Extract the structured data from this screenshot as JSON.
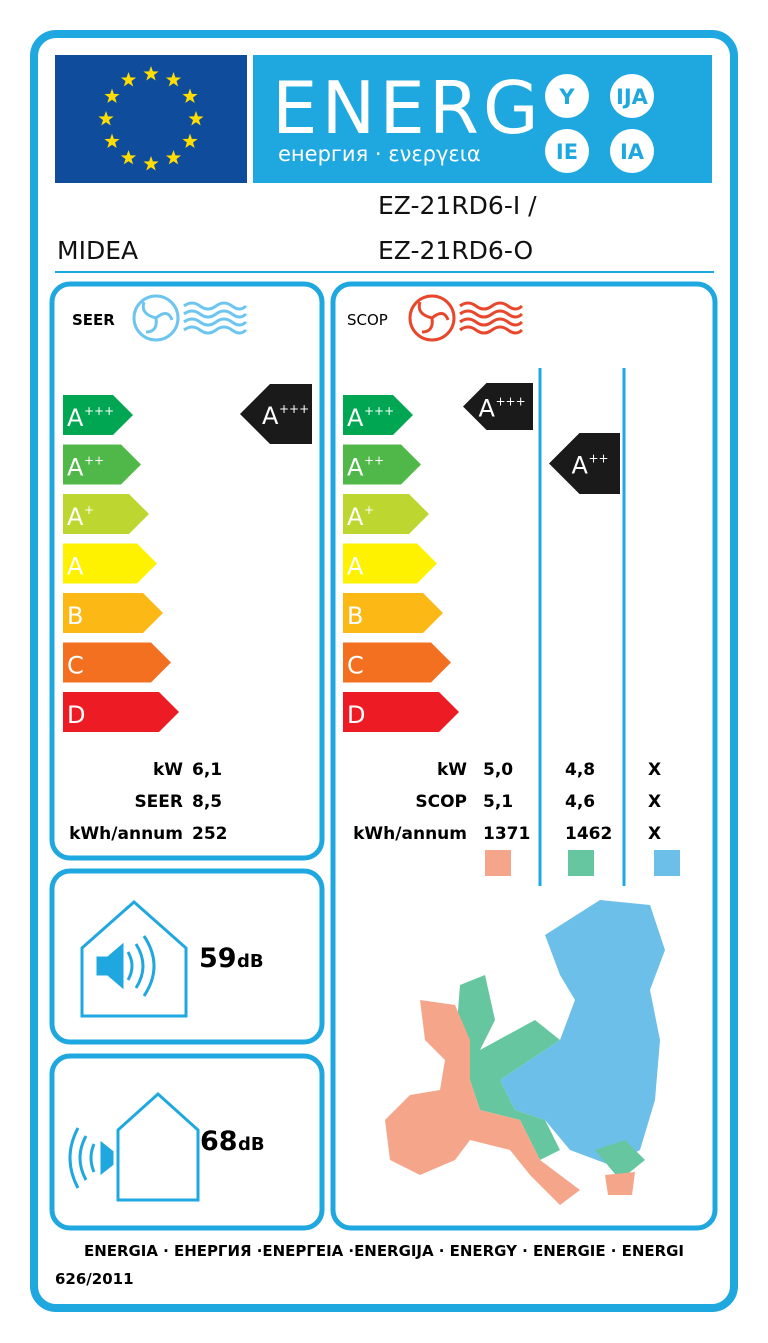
{
  "header": {
    "word": "ENERG",
    "subtitle": "енергия · ενεργεια",
    "suffixes": [
      "Y",
      "IJA",
      "IE",
      "IA"
    ]
  },
  "brand": "MIDEA",
  "model": [
    "EZ-21RD6-I /",
    "EZ-21RD6-O"
  ],
  "cooling": {
    "label": "SEER",
    "classes": [
      {
        "letter": "A",
        "sup": "+++"
      },
      {
        "letter": "A",
        "sup": "++"
      },
      {
        "letter": "A",
        "sup": "+"
      },
      {
        "letter": "A"
      },
      {
        "letter": "B"
      },
      {
        "letter": "C"
      },
      {
        "letter": "D"
      }
    ],
    "rating": {
      "letter": "A",
      "sup": "+++"
    },
    "rows": [
      [
        "kW",
        "6,1"
      ],
      [
        "SEER",
        "8,5"
      ],
      [
        "kWh/annum",
        "252"
      ]
    ]
  },
  "heating": {
    "label": "SCOP",
    "classes": [
      {
        "letter": "A",
        "sup": "+++"
      },
      {
        "letter": "A",
        "sup": "++"
      },
      {
        "letter": "A",
        "sup": "+"
      },
      {
        "letter": "A"
      },
      {
        "letter": "B"
      },
      {
        "letter": "C"
      },
      {
        "letter": "D"
      }
    ],
    "ratings": [
      {
        "letter": "A",
        "sup": "+++"
      },
      {
        "letter": "A",
        "sup": "++"
      }
    ],
    "rows": [
      [
        "kW",
        "5,0",
        "4,8",
        "X"
      ],
      [
        "SCOP",
        "5,1",
        "4,6",
        "X"
      ],
      [
        "kWh/annum",
        "1371",
        "1462",
        "X"
      ]
    ]
  },
  "noise_indoor": {
    "value": "59",
    "unit": "dB"
  },
  "noise_outdoor": {
    "value": "68",
    "unit": "dB"
  },
  "footer": {
    "languages": "ENERGIA · ЕНЕРГИЯ ·ΕΝΕΡΓΕΙΑ ·ENERGIJA · ENERGY · ENERGIE · ENERGI",
    "regulation": "626/2011"
  }
}
